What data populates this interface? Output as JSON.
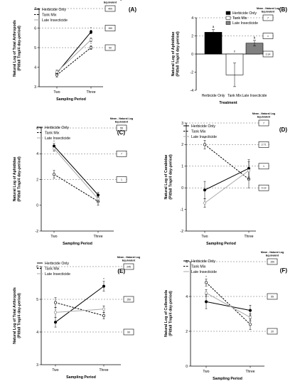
{
  "chart_data": [
    {
      "label": "(A)",
      "type": "line",
      "ylabel": "Natural Log of Total Arthropods\n(Pitfall Trap/4 day-period)",
      "xlabel": "Sampling Period",
      "categories": [
        "Two",
        "Three"
      ],
      "ylim": [
        3,
        7
      ],
      "yticks": [
        3,
        4,
        5,
        6,
        7
      ],
      "legend": "top-left",
      "series": [
        {
          "name": "Herbicide Only",
          "style": "solid",
          "color": "#000000",
          "marker": "filled",
          "values": [
            3.7,
            5.8
          ],
          "err": [
            0.1,
            0.1
          ],
          "stars": [
            false,
            true
          ]
        },
        {
          "name": "Tank Mix",
          "style": "dashed",
          "color": "#000000",
          "marker": "open",
          "values": [
            3.6,
            5.0
          ],
          "err": [
            0.1,
            0.1
          ],
          "stars": [
            false,
            true
          ]
        },
        {
          "name": "Late Insecticide",
          "style": "solid",
          "color": "#aaaaaa",
          "marker": "open",
          "values": [
            3.75,
            5.4
          ],
          "err": [
            0.1,
            0.1
          ],
          "stars": [
            false,
            false
          ]
        }
      ],
      "mean_title": "Mean - Natural Log\nEquivalent",
      "mean_values": [
        400,
        150,
        50
      ]
    },
    {
      "label": "(B)",
      "type": "bar",
      "ylabel": "Natural Log of Aphididae\n(Pitfall Trap/4 day-period)",
      "xlabel": "Treatment",
      "categories": [
        "Herbicide Only",
        "Tank Mix",
        "Late Insecticide"
      ],
      "values": [
        2.4,
        -2.3,
        1.2
      ],
      "err": [
        0.3,
        1.3,
        0.3
      ],
      "letters": [
        "a",
        "c",
        "b"
      ],
      "colors": [
        "#000000",
        "#ffffff",
        "#808080"
      ],
      "ylim": [
        -4,
        4
      ],
      "yticks": [
        -4,
        -2,
        0,
        2,
        4
      ],
      "legend": "top-right",
      "series": [
        {
          "name": "Herbicide Only",
          "color": "#000000"
        },
        {
          "name": "Tank Mix",
          "color": "#ffffff"
        },
        {
          "name": "Late Insecticide",
          "color": "#808080"
        }
      ],
      "mean_title": "Mean - Natural Log\nEquivalent",
      "mean_values": [
        "7",
        "1",
        "0.14"
      ]
    },
    {
      "label": "(C)",
      "type": "line",
      "ylabel": "Natural Log of Aphididae\n(Pitfall Trap/4 day-period)",
      "xlabel": "Sampling Period",
      "categories": [
        "Two",
        "Three"
      ],
      "ylim": [
        -2,
        6
      ],
      "yticks": [
        -2,
        0,
        2,
        4,
        6
      ],
      "legend": "top-left",
      "series": [
        {
          "name": "Herbicide Only",
          "style": "solid",
          "color": "#000000",
          "marker": "filled",
          "values": [
            4.6,
            0.8
          ],
          "err": [
            0.2,
            0.2
          ],
          "stars": [
            true,
            false
          ]
        },
        {
          "name": "Tank Mix",
          "style": "dashed",
          "color": "#000000",
          "marker": "open",
          "values": [
            2.4,
            0.3
          ],
          "err": [
            0.3,
            0.3
          ],
          "stars": [
            false,
            false
          ]
        },
        {
          "name": "Late Insecticide",
          "style": "solid",
          "color": "#aaaaaa",
          "marker": "open",
          "values": [
            4.4,
            0.5
          ],
          "err": [
            0.2,
            0.2
          ],
          "stars": [
            false,
            false
          ]
        }
      ],
      "mean_title": "Mean - Natural Log\nEquivalent",
      "mean_values": [
        "55",
        "7",
        "1"
      ]
    },
    {
      "label": "(D)",
      "type": "line",
      "ylabel": "Natural Log of Carabidae\n(Pitfall Trap/4 day-period)",
      "xlabel": "Sampling Period",
      "categories": [
        "Two",
        "Three"
      ],
      "ylim": [
        -2,
        3
      ],
      "yticks": [
        -2,
        -1,
        0,
        1,
        2,
        3
      ],
      "legend": "top-left",
      "series": [
        {
          "name": "Herbicide Only",
          "style": "solid",
          "color": "#000000",
          "marker": "filled",
          "values": [
            -0.1,
            0.9
          ],
          "err": [
            0.4,
            0.4
          ],
          "stars": [
            false,
            false
          ]
        },
        {
          "name": "Tank Mix",
          "style": "dashed",
          "color": "#000000",
          "marker": "open",
          "values": [
            2.0,
            0.4
          ],
          "err": [
            0.2,
            0.4
          ],
          "stars": [
            true,
            false
          ]
        },
        {
          "name": "Late Insecticide",
          "style": "solid",
          "color": "#aaaaaa",
          "marker": "open",
          "values": [
            -0.7,
            0.8
          ],
          "err": [
            0.2,
            0.4
          ],
          "stars": [
            false,
            false
          ]
        }
      ],
      "mean_title": "Mean - Natural Log\nEquivalent",
      "mean_values": [
        "7",
        "2.71",
        "1",
        "0.13"
      ]
    },
    {
      "label": "(E)",
      "type": "line",
      "ylabel": "Natural Log of Total Arthropods\n(Pitfall Trap/4 day-period)",
      "xlabel": "Sampling Period",
      "categories": [
        "Two",
        "Three"
      ],
      "ylim": [
        3,
        6
      ],
      "yticks": [
        3,
        4,
        5,
        6
      ],
      "legend": "top-left",
      "series": [
        {
          "name": "Herbicide Only",
          "style": "solid",
          "color": "#000000",
          "marker": "filled",
          "values": [
            4.3,
            5.4
          ],
          "err": [
            0.15,
            0.15
          ],
          "stars": [
            false,
            true
          ]
        },
        {
          "name": "Tank Mix",
          "style": "dashed",
          "color": "#000000",
          "marker": "open",
          "values": [
            4.9,
            4.5
          ],
          "err": [
            0.15,
            0.1
          ],
          "stars": [
            false,
            false
          ]
        },
        {
          "name": "Late Insecticide",
          "style": "solid",
          "color": "#aaaaaa",
          "marker": "open",
          "values": [
            4.6,
            4.7
          ],
          "err": [
            0.15,
            0.1
          ],
          "stars": [
            false,
            false
          ]
        }
      ],
      "mean_title": "Mean - Natural Log\nEquivalent",
      "mean_values": [
        "245",
        "150",
        "90"
      ]
    },
    {
      "label": "(F)",
      "type": "line",
      "ylabel": "Natural Log of Collembola\n(Pitfall Trap/4 day-period)",
      "xlabel": "Sampling Period",
      "categories": [
        "Two",
        "Three"
      ],
      "ylim": [
        0,
        6
      ],
      "yticks": [
        0,
        2,
        4,
        6
      ],
      "legend": "top-left",
      "series": [
        {
          "name": "Herbicide Only",
          "style": "solid",
          "color": "#000000",
          "marker": "filled",
          "values": [
            3.7,
            3.2
          ],
          "err": [
            0.4,
            0.3
          ],
          "stars": [
            false,
            false
          ]
        },
        {
          "name": "Tank Mix",
          "style": "dashed",
          "color": "#000000",
          "marker": "open",
          "values": [
            4.8,
            2.4
          ],
          "err": [
            0.2,
            0.3
          ],
          "stars": [
            true,
            true
          ]
        },
        {
          "name": "Late Insecticide",
          "style": "solid",
          "color": "#aaaaaa",
          "marker": "open",
          "values": [
            4.2,
            2.8
          ],
          "err": [
            0.2,
            0.2
          ],
          "stars": [
            false,
            false
          ]
        }
      ],
      "mean_title": "Mean - Natural Log\nEquivalent",
      "mean_values": [
        "150",
        "55",
        "20"
      ]
    }
  ]
}
